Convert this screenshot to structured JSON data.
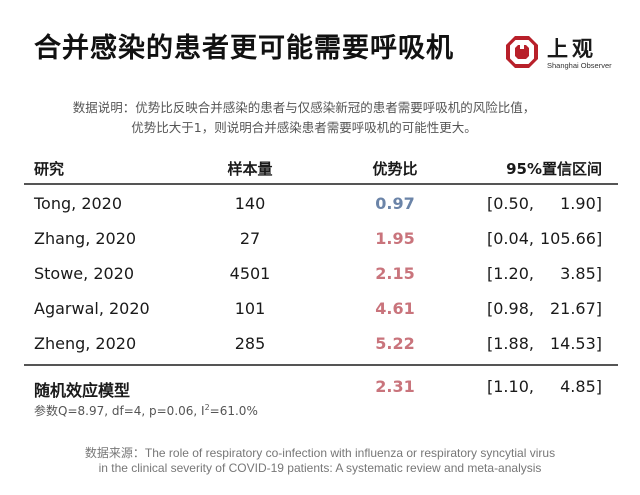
{
  "title": "合并感染的患者更可能需要呼吸机",
  "logo": {
    "name": "上观",
    "sub": "Shanghai Observer",
    "mark_color": "#b8202a"
  },
  "note": {
    "line1": "数据说明：优势比反映合并感染的患者与仅感染新冠的患者需要呼吸机的风险比值，",
    "line2": "优势比大于1，则说明合并感染患者需要呼吸机的可能性更大。"
  },
  "headers": {
    "study": "研究",
    "n": "样本量",
    "or": "优势比",
    "ci": "95%置信区间"
  },
  "chart_data": {
    "type": "table",
    "title": "合并感染的患者更可能需要呼吸机",
    "columns": [
      "研究",
      "样本量",
      "优势比",
      "95%置信区间"
    ],
    "rows": [
      {
        "study": "Tong, 2020",
        "n": "140",
        "or": "0.97",
        "ci_lo": "[0.50,",
        "ci_hi": "1.90]"
      },
      {
        "study": "Zhang, 2020",
        "n": "27",
        "or": "1.95",
        "ci_lo": "[0.04,",
        "ci_hi": "105.66]"
      },
      {
        "study": "Stowe, 2020",
        "n": "4501",
        "or": "2.15",
        "ci_lo": "[1.20,",
        "ci_hi": "3.85]"
      },
      {
        "study": "Agarwal, 2020",
        "n": "101",
        "or": "4.61",
        "ci_lo": "[0.98,",
        "ci_hi": "21.67]"
      },
      {
        "study": "Zheng, 2020",
        "n": "285",
        "or": "5.22",
        "ci_lo": "[1.88,",
        "ci_hi": "14.53]"
      }
    ],
    "model": {
      "label": "随机效应模型",
      "or": "2.31",
      "ci_lo": "[1.10,",
      "ci_hi": "4.85]"
    },
    "colors": {
      "below_one": "#6b84a8",
      "above_one": "#c9747c"
    }
  },
  "params": {
    "prefix": "参数Q=8.97, df=4, p=0.06, I",
    "sup": "2",
    "suffix": "=61.0%"
  },
  "source": {
    "line1": "数据来源：The role of respiratory co-infection with influenza or respiratory syncytial virus",
    "line2": "in the clinical severity of COVID-19 patients: A systematic review and meta-analysis"
  }
}
